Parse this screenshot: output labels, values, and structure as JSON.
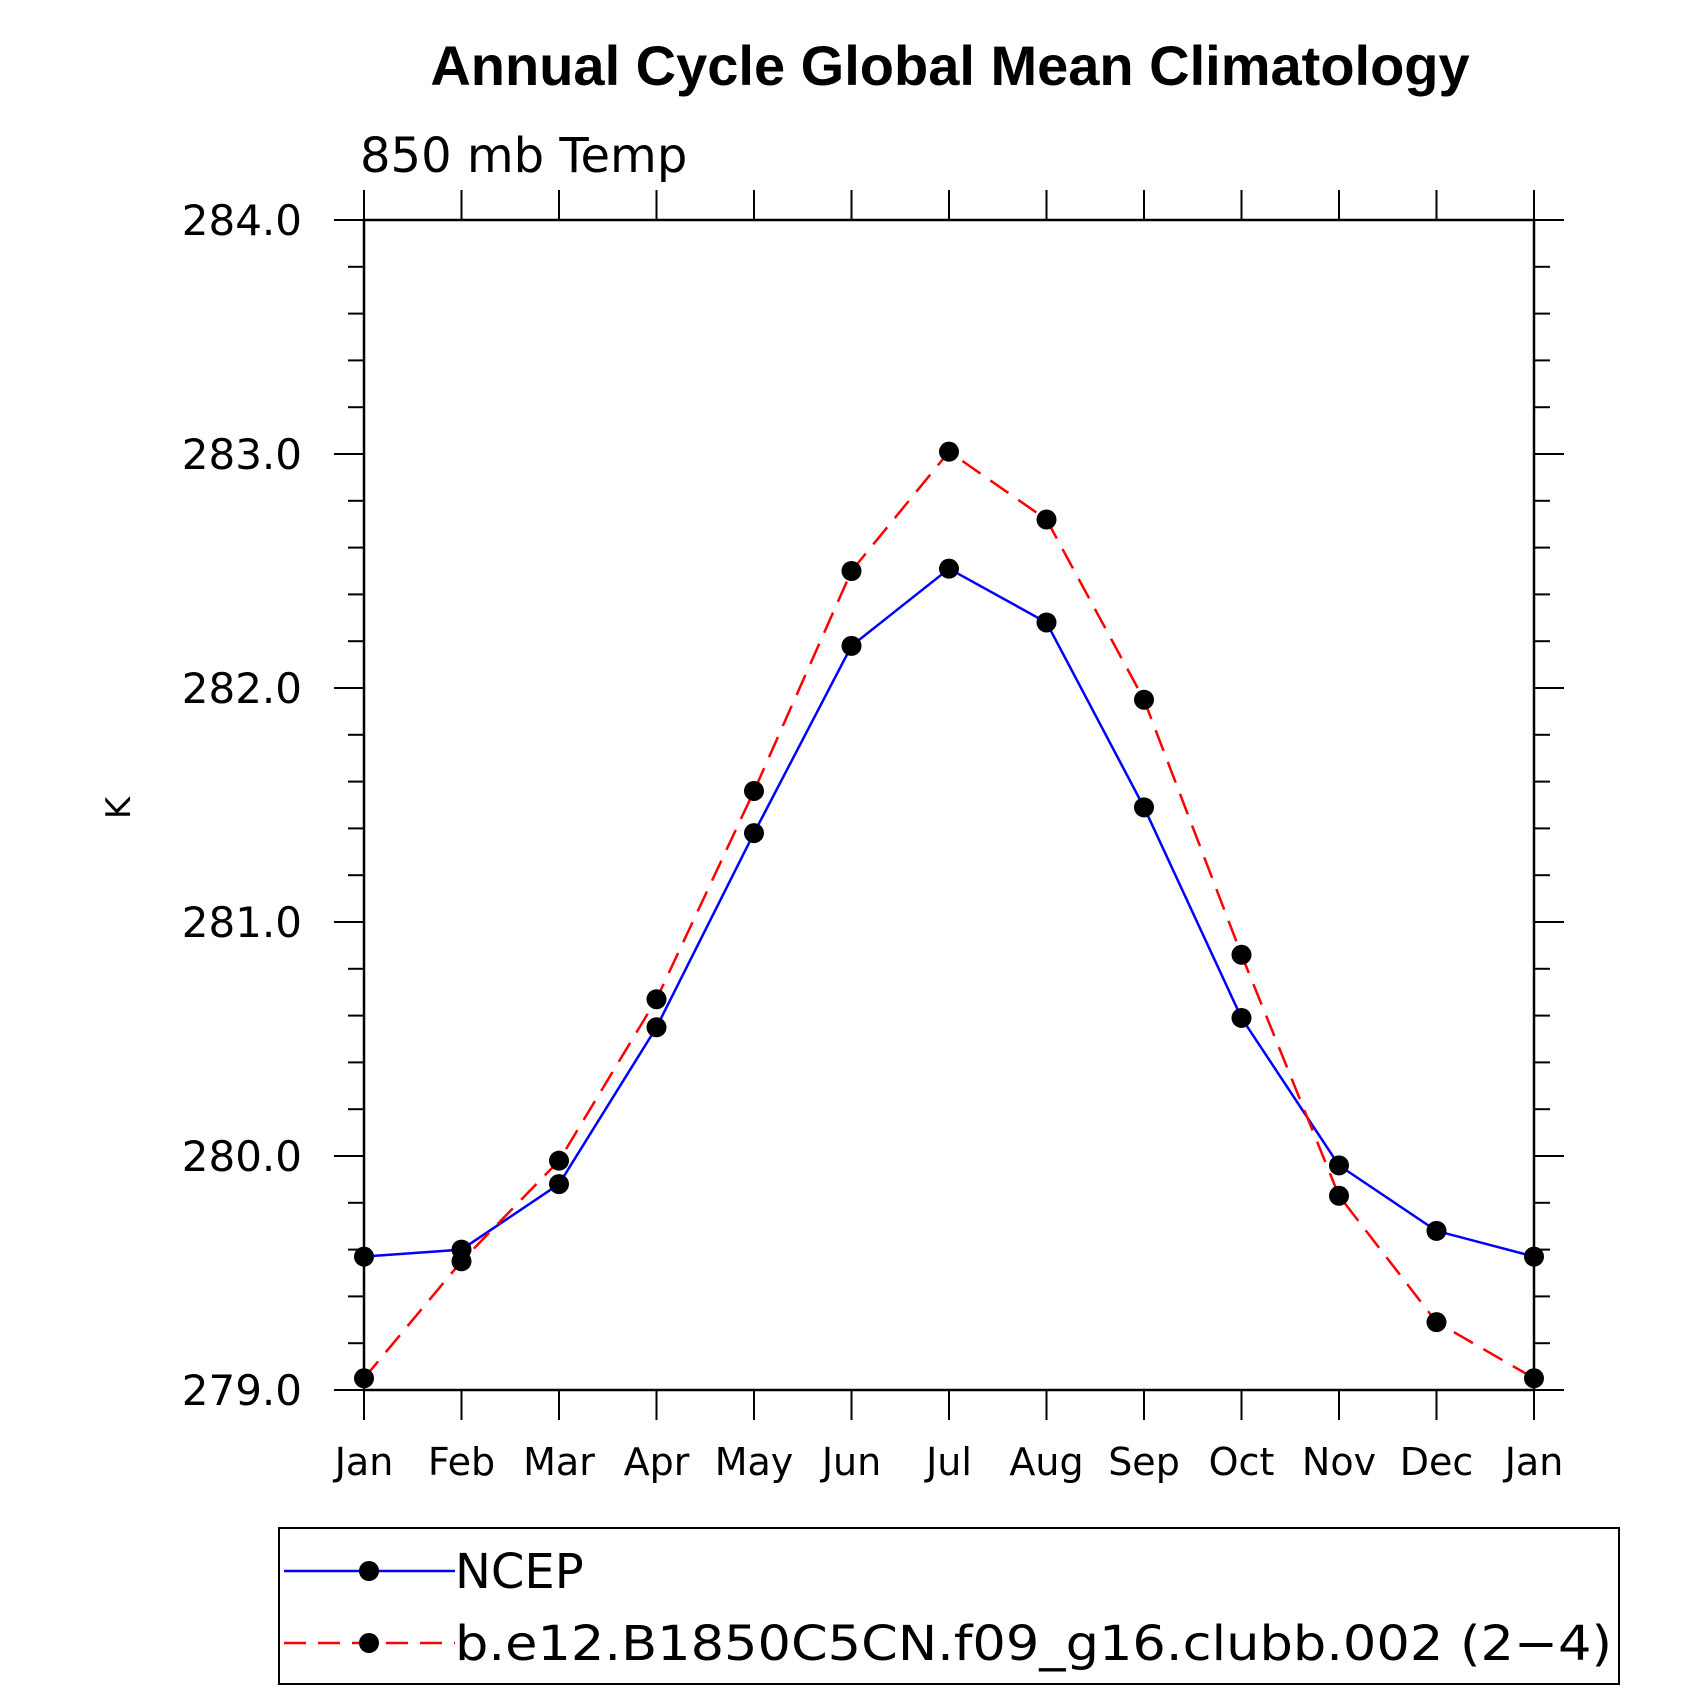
{
  "chart_data": {
    "type": "line",
    "title": "Annual Cycle Global Mean Climatology",
    "subtitle": "850 mb Temp",
    "ylabel": "K",
    "xlabel": "",
    "ylim": [
      279.0,
      284.0
    ],
    "yticks": [
      "279.0",
      "280.0",
      "281.0",
      "282.0",
      "283.0",
      "284.0"
    ],
    "categories": [
      "Jan",
      "Feb",
      "Mar",
      "Apr",
      "May",
      "Jun",
      "Jul",
      "Aug",
      "Sep",
      "Oct",
      "Nov",
      "Dec",
      "Jan"
    ],
    "series": [
      {
        "name": "NCEP",
        "color": "#0000ff",
        "line_style": "solid",
        "marker": "filled-circle",
        "values": [
          279.57,
          279.6,
          279.88,
          280.55,
          281.38,
          282.18,
          282.51,
          282.28,
          281.49,
          280.59,
          279.96,
          279.68,
          279.57
        ]
      },
      {
        "name": "b.e12.B1850C5CN.f09_g16.clubb.002 (2−4)",
        "color": "#ff0000",
        "line_style": "dashed",
        "marker": "filled-circle",
        "values": [
          279.05,
          279.55,
          279.98,
          280.67,
          281.56,
          282.5,
          283.01,
          282.72,
          281.95,
          280.86,
          279.83,
          279.29,
          279.05
        ]
      }
    ],
    "grid": false,
    "legend_position": "bottom"
  },
  "colors": {
    "marker": "#000000",
    "axis": "#000000"
  }
}
